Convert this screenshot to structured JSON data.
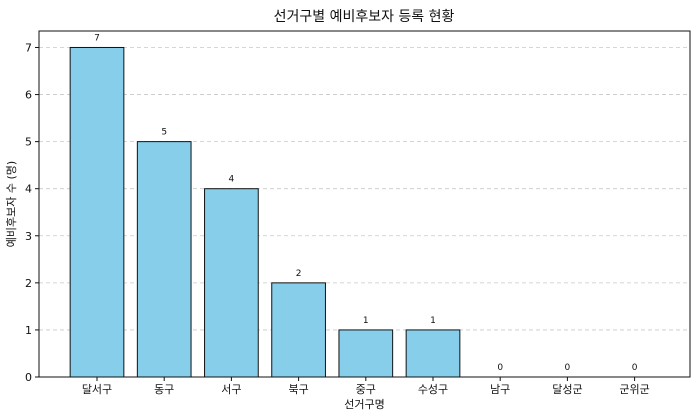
{
  "chart_data": {
    "type": "bar",
    "title": "선거구별 예비후보자 등록 현황",
    "xlabel": "선거구명",
    "ylabel": "예비후보자 수 (명)",
    "categories": [
      "달서구",
      "동구",
      "서구",
      "북구",
      "중구",
      "수성구",
      "남구",
      "달성군",
      "군위군"
    ],
    "values": [
      7,
      5,
      4,
      2,
      1,
      1,
      0,
      0,
      0
    ],
    "ylim": [
      0,
      7.35
    ],
    "yticks": [
      0,
      1,
      2,
      3,
      4,
      5,
      6,
      7
    ],
    "grid": "y-dashed",
    "bar_color": "#87CEEB",
    "edge_color": "#111111",
    "data_labels": true
  }
}
